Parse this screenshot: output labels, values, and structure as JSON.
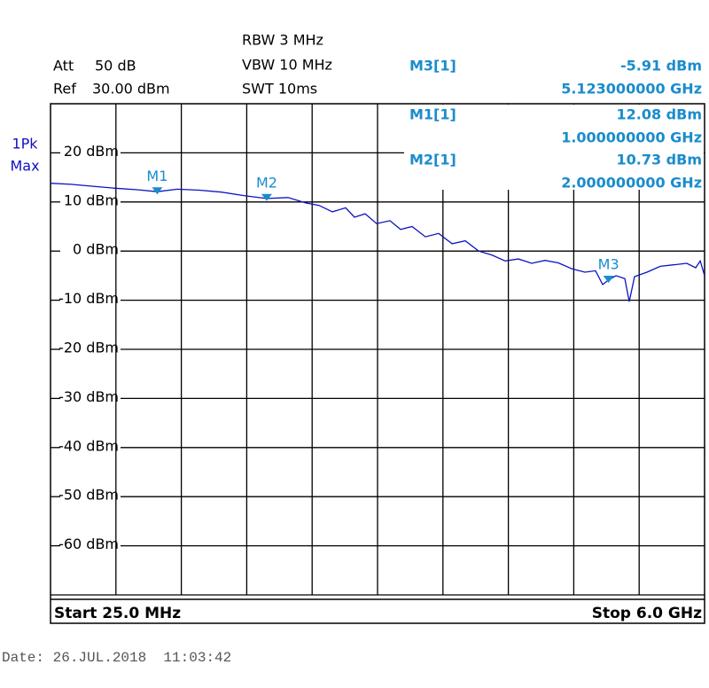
{
  "chart_data": {
    "type": "line",
    "settings": {
      "att_label": "Att",
      "att": "50 dB",
      "ref_label": "Ref",
      "ref": "30.00 dBm",
      "rbw": "RBW 3 MHz",
      "vbw": "VBW 10 MHz",
      "swt": "SWT 10ms",
      "detector": "1Pk",
      "mode": "Max"
    },
    "start_label": "Start 25.0 MHz",
    "stop_label": "Stop 6.0 GHz",
    "date": "Date: 26.JUL.2018  11:03:42",
    "xlim": [
      0.025,
      6
    ],
    "ylim": [
      -70,
      30
    ],
    "yticks": [
      {
        "value": 20,
        "label": "20 dBm"
      },
      {
        "value": 10,
        "label": "10 dBm"
      },
      {
        "value": 0,
        "label": "0 dBm"
      },
      {
        "value": -10,
        "label": "-10 dBm"
      },
      {
        "value": -20,
        "label": "-20 dBm"
      },
      {
        "value": -30,
        "label": "-30 dBm"
      },
      {
        "value": -40,
        "label": "-40 dBm"
      },
      {
        "value": -50,
        "label": "-50 dBm"
      },
      {
        "value": -60,
        "label": "-60 dBm"
      }
    ],
    "series": [
      {
        "color": "#0a14c0",
        "x": [
          0.025,
          0.211,
          0.414,
          0.616,
          0.818,
          1.0,
          1.183,
          1.385,
          1.587,
          1.79,
          2.0,
          2.195,
          2.357,
          2.478,
          2.6,
          2.721,
          2.802,
          2.899,
          3.004,
          3.126,
          3.223,
          3.328,
          3.45,
          3.571,
          3.693,
          3.814,
          3.936,
          4.057,
          4.178,
          4.3,
          4.421,
          4.543,
          4.664,
          4.786,
          4.907,
          5.004,
          5.069,
          5.123,
          5.19,
          5.271,
          5.312,
          5.36,
          5.474,
          5.595,
          5.717,
          5.838,
          5.919,
          5.96,
          6.0
        ],
        "values": [
          13.8,
          13.6,
          13.2,
          12.8,
          12.5,
          12.1,
          12.6,
          12.4,
          12.0,
          11.3,
          10.7,
          10.9,
          9.8,
          9.3,
          8.0,
          8.8,
          6.9,
          7.6,
          5.6,
          6.2,
          4.4,
          5.0,
          2.9,
          3.6,
          1.5,
          2.1,
          0.0,
          -0.8,
          -2.0,
          -1.6,
          -2.5,
          -1.9,
          -2.4,
          -3.6,
          -4.3,
          -4.0,
          -6.8,
          -5.91,
          -5.0,
          -5.6,
          -10.3,
          -5.2,
          -4.3,
          -3.1,
          -2.8,
          -2.5,
          -3.4,
          -2.0,
          -5.0
        ]
      }
    ],
    "marker_color": "#1a8ccc",
    "markers": [
      {
        "name": "M3",
        "readout": "M3[1]",
        "x": 5.123,
        "x_label": "5.123000000 GHz",
        "value": -5.91,
        "value_label": "-5.91 dBm"
      },
      {
        "name": "M1",
        "readout": "M1[1]",
        "x": 1.0,
        "x_label": "1.000000000 GHz",
        "value": 12.08,
        "value_label": "12.08 dBm"
      },
      {
        "name": "M2",
        "readout": "M2[1]",
        "x": 2.0,
        "x_label": "2.000000000 GHz",
        "value": 10.73,
        "value_label": "10.73 dBm"
      }
    ]
  }
}
